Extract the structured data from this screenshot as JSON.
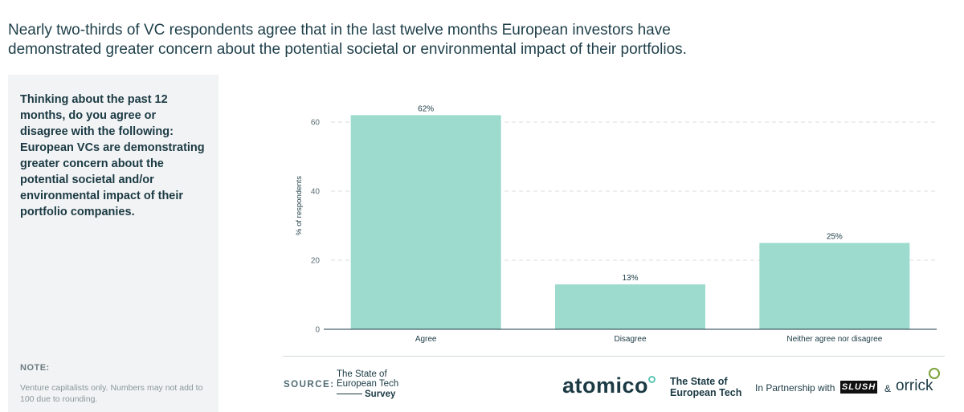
{
  "headline": "Nearly two-thirds of VC respondents agree that in the last twelve months European investors have demonstrated greater concern about the potential societal or environmental impact of their portfolios.",
  "panel": {
    "question": "Thinking about the past 12 months, do you agree or disagree with the following: European VCs are demonstrating greater concern about the potential societal and/or environmental impact of their portfolio companies.",
    "note_label": "NOTE:",
    "note_text": "Venture capitalists only. Numbers may not add to 100 due to rounding."
  },
  "footer": {
    "source_label": "SOURCE:",
    "survey_logo": {
      "line1": "The State of",
      "line2": "European Tech",
      "line3": "Survey"
    },
    "atomico": "atomico",
    "soet_line1": "The State of",
    "soet_line2": "European Tech",
    "partnership": "In Partnership with",
    "slush": "SLUSH",
    "amp": "&",
    "orrick": "orrick"
  },
  "chart_data": {
    "type": "bar",
    "categories": [
      "Agree",
      "Disagree",
      "Neither agree nor disagree"
    ],
    "values": [
      62,
      13,
      25
    ],
    "data_labels": [
      "62%",
      "13%",
      "25%"
    ],
    "ylabel": "% of respondents",
    "ylim": [
      0,
      60
    ],
    "yticks": [
      0,
      20,
      40,
      60
    ],
    "grid": "horizontal dashed",
    "bar_color": "#9cdbce",
    "axis_color": "#1b3a44"
  }
}
